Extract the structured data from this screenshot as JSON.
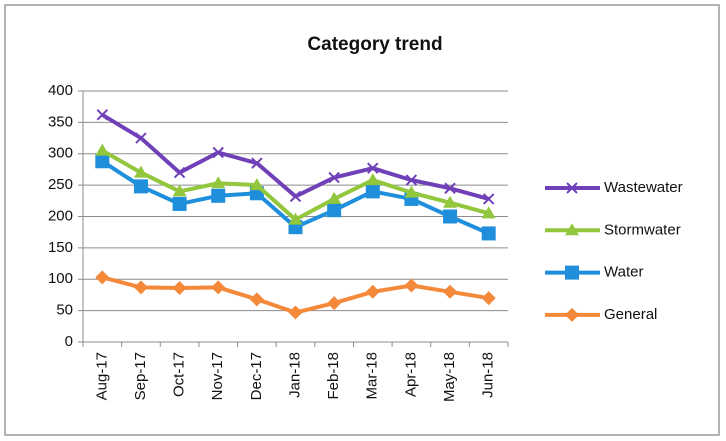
{
  "chart_data": {
    "type": "line",
    "title": "Category trend",
    "categories": [
      "Aug-17",
      "Sep-17",
      "Oct-17",
      "Nov-17",
      "Dec-17",
      "Jan-18",
      "Feb-18",
      "Mar-18",
      "Apr-18",
      "May-18",
      "Jun-18"
    ],
    "series": [
      {
        "name": "Wastewater",
        "color": "#7040b8",
        "marker": "x",
        "values": [
          362,
          325,
          270,
          302,
          285,
          232,
          262,
          277,
          258,
          245,
          228
        ]
      },
      {
        "name": "Stormwater",
        "color": "#92c63c",
        "marker": "triangle",
        "values": [
          305,
          270,
          240,
          253,
          250,
          195,
          228,
          258,
          238,
          222,
          205
        ]
      },
      {
        "name": "Water",
        "color": "#1f8fdc",
        "marker": "square",
        "values": [
          288,
          248,
          220,
          233,
          237,
          183,
          210,
          240,
          228,
          200,
          173
        ]
      },
      {
        "name": "General",
        "color": "#f5893a",
        "marker": "diamond",
        "values": [
          103,
          87,
          86,
          87,
          68,
          47,
          62,
          80,
          90,
          80,
          70
        ]
      }
    ],
    "ylim": [
      0,
      400
    ],
    "yticks": [
      0,
      50,
      100,
      150,
      200,
      250,
      300,
      350,
      400
    ],
    "grid": true,
    "legend": "right"
  }
}
